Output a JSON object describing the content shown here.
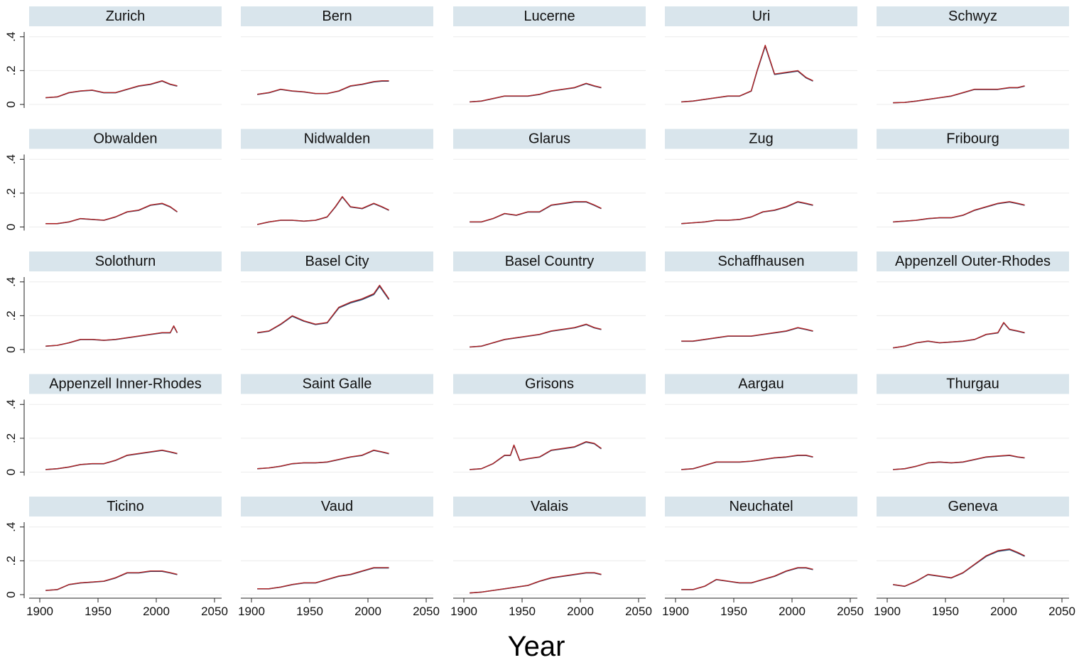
{
  "chart_data": {
    "type": "line",
    "layout": "small-multiples 5x5",
    "xlabel": "Year",
    "ylabel": "",
    "xlim": [
      1900,
      2055
    ],
    "ylim": [
      0,
      0.42
    ],
    "x_ticks": [
      1900,
      1950,
      2000,
      2050
    ],
    "x_tick_labels": [
      "1900",
      "1950",
      "2000",
      "2050"
    ],
    "y_ticks": [
      0,
      0.2,
      0.4
    ],
    "y_tick_labels": [
      "0",
      ".2",
      ".4"
    ],
    "grid": true,
    "legend": "none",
    "series_colors": [
      "#1f4e79",
      "#b22222"
    ],
    "series": [
      {
        "name": "",
        "color": "#1f4e79"
      },
      {
        "name": "",
        "color": "#b22222"
      }
    ],
    "panels": [
      {
        "title": "Zurich",
        "x": [
          1905,
          1915,
          1925,
          1935,
          1945,
          1955,
          1965,
          1975,
          1985,
          1995,
          2005,
          2012,
          2018
        ],
        "values": [
          0.04,
          0.045,
          0.07,
          0.08,
          0.085,
          0.07,
          0.07,
          0.09,
          0.11,
          0.12,
          0.14,
          0.12,
          0.11
        ]
      },
      {
        "title": "Bern",
        "x": [
          1905,
          1915,
          1925,
          1935,
          1945,
          1955,
          1965,
          1975,
          1985,
          1995,
          2005,
          2012,
          2018
        ],
        "values": [
          0.06,
          0.07,
          0.09,
          0.08,
          0.075,
          0.065,
          0.065,
          0.08,
          0.11,
          0.12,
          0.135,
          0.14,
          0.14
        ]
      },
      {
        "title": "Lucerne",
        "x": [
          1905,
          1915,
          1925,
          1935,
          1945,
          1955,
          1965,
          1975,
          1985,
          1995,
          2005,
          2012,
          2018
        ],
        "values": [
          0.015,
          0.02,
          0.035,
          0.05,
          0.05,
          0.05,
          0.06,
          0.08,
          0.09,
          0.1,
          0.125,
          0.11,
          0.1
        ]
      },
      {
        "title": "Uri",
        "x": [
          1905,
          1915,
          1925,
          1935,
          1945,
          1955,
          1965,
          1970,
          1977,
          1985,
          1995,
          2005,
          2012,
          2018
        ],
        "values": [
          0.015,
          0.02,
          0.03,
          0.04,
          0.05,
          0.05,
          0.08,
          0.2,
          0.35,
          0.18,
          0.19,
          0.2,
          0.16,
          0.14
        ]
      },
      {
        "title": "Schwyz",
        "x": [
          1905,
          1915,
          1925,
          1935,
          1945,
          1955,
          1965,
          1975,
          1985,
          1995,
          2005,
          2012,
          2018
        ],
        "values": [
          0.01,
          0.012,
          0.02,
          0.03,
          0.04,
          0.05,
          0.07,
          0.09,
          0.09,
          0.09,
          0.1,
          0.1,
          0.11
        ]
      },
      {
        "title": "Obwalden",
        "x": [
          1905,
          1915,
          1925,
          1935,
          1945,
          1955,
          1965,
          1975,
          1985,
          1995,
          2005,
          2012,
          2018
        ],
        "values": [
          0.02,
          0.02,
          0.03,
          0.05,
          0.045,
          0.04,
          0.06,
          0.09,
          0.1,
          0.13,
          0.14,
          0.12,
          0.09
        ]
      },
      {
        "title": "Nidwalden",
        "x": [
          1905,
          1915,
          1925,
          1935,
          1945,
          1955,
          1965,
          1972,
          1978,
          1985,
          1995,
          2005,
          2012,
          2018
        ],
        "values": [
          0.015,
          0.03,
          0.04,
          0.04,
          0.035,
          0.04,
          0.06,
          0.12,
          0.18,
          0.12,
          0.11,
          0.14,
          0.12,
          0.1
        ]
      },
      {
        "title": "Glarus",
        "x": [
          1905,
          1915,
          1925,
          1935,
          1945,
          1955,
          1965,
          1975,
          1985,
          1995,
          2005,
          2012,
          2018
        ],
        "values": [
          0.03,
          0.03,
          0.05,
          0.08,
          0.07,
          0.09,
          0.09,
          0.13,
          0.14,
          0.15,
          0.15,
          0.13,
          0.11
        ]
      },
      {
        "title": "Zug",
        "x": [
          1905,
          1915,
          1925,
          1935,
          1945,
          1955,
          1965,
          1975,
          1985,
          1995,
          2005,
          2012,
          2018
        ],
        "values": [
          0.02,
          0.025,
          0.03,
          0.04,
          0.04,
          0.045,
          0.06,
          0.09,
          0.1,
          0.12,
          0.15,
          0.14,
          0.13
        ]
      },
      {
        "title": "Fribourg",
        "x": [
          1905,
          1915,
          1925,
          1935,
          1945,
          1955,
          1965,
          1975,
          1985,
          1995,
          2005,
          2012,
          2018
        ],
        "values": [
          0.03,
          0.035,
          0.04,
          0.05,
          0.055,
          0.055,
          0.07,
          0.1,
          0.12,
          0.14,
          0.15,
          0.14,
          0.13
        ]
      },
      {
        "title": "Solothurn",
        "x": [
          1905,
          1915,
          1925,
          1935,
          1945,
          1955,
          1965,
          1975,
          1985,
          1995,
          2005,
          2012,
          2015,
          2018
        ],
        "values": [
          0.02,
          0.025,
          0.04,
          0.06,
          0.06,
          0.055,
          0.06,
          0.07,
          0.08,
          0.09,
          0.1,
          0.1,
          0.14,
          0.1
        ]
      },
      {
        "title": "Basel City",
        "x": [
          1905,
          1915,
          1925,
          1935,
          1945,
          1955,
          1965,
          1975,
          1985,
          1995,
          2005,
          2010,
          2018
        ],
        "values": [
          0.1,
          0.11,
          0.15,
          0.2,
          0.17,
          0.15,
          0.16,
          0.25,
          0.28,
          0.3,
          0.33,
          0.38,
          0.3
        ]
      },
      {
        "title": "Basel Country",
        "x": [
          1905,
          1915,
          1925,
          1935,
          1945,
          1955,
          1965,
          1975,
          1985,
          1995,
          2005,
          2012,
          2018
        ],
        "values": [
          0.015,
          0.02,
          0.04,
          0.06,
          0.07,
          0.08,
          0.09,
          0.11,
          0.12,
          0.13,
          0.15,
          0.13,
          0.12
        ]
      },
      {
        "title": "Schaffhausen",
        "x": [
          1905,
          1915,
          1925,
          1935,
          1945,
          1955,
          1965,
          1975,
          1985,
          1995,
          2005,
          2012,
          2018
        ],
        "values": [
          0.05,
          0.05,
          0.06,
          0.07,
          0.08,
          0.08,
          0.08,
          0.09,
          0.1,
          0.11,
          0.13,
          0.12,
          0.11
        ]
      },
      {
        "title": "Appenzell Outer-Rhodes",
        "x": [
          1905,
          1915,
          1925,
          1935,
          1945,
          1955,
          1965,
          1975,
          1985,
          1995,
          2000,
          2005,
          2012,
          2018
        ],
        "values": [
          0.01,
          0.02,
          0.04,
          0.05,
          0.04,
          0.045,
          0.05,
          0.06,
          0.09,
          0.1,
          0.16,
          0.12,
          0.11,
          0.1
        ]
      },
      {
        "title": "Appenzell Inner-Rhodes",
        "x": [
          1905,
          1915,
          1925,
          1935,
          1945,
          1955,
          1965,
          1975,
          1985,
          1995,
          2005,
          2012,
          2018
        ],
        "values": [
          0.015,
          0.02,
          0.03,
          0.045,
          0.05,
          0.05,
          0.07,
          0.1,
          0.11,
          0.12,
          0.13,
          0.12,
          0.11
        ]
      },
      {
        "title": "Saint Galle",
        "x": [
          1905,
          1915,
          1925,
          1935,
          1945,
          1955,
          1965,
          1975,
          1985,
          1995,
          2005,
          2012,
          2018
        ],
        "values": [
          0.02,
          0.025,
          0.035,
          0.05,
          0.055,
          0.055,
          0.06,
          0.075,
          0.09,
          0.1,
          0.13,
          0.12,
          0.11
        ]
      },
      {
        "title": "Grisons",
        "x": [
          1905,
          1915,
          1925,
          1935,
          1940,
          1943,
          1948,
          1955,
          1965,
          1975,
          1985,
          1995,
          2005,
          2012,
          2018
        ],
        "values": [
          0.015,
          0.02,
          0.05,
          0.1,
          0.1,
          0.16,
          0.07,
          0.08,
          0.09,
          0.13,
          0.14,
          0.15,
          0.18,
          0.17,
          0.14
        ]
      },
      {
        "title": "Aargau",
        "x": [
          1905,
          1915,
          1925,
          1935,
          1945,
          1955,
          1965,
          1975,
          1985,
          1995,
          2005,
          2012,
          2018
        ],
        "values": [
          0.015,
          0.02,
          0.04,
          0.06,
          0.06,
          0.06,
          0.065,
          0.075,
          0.085,
          0.09,
          0.1,
          0.1,
          0.09
        ]
      },
      {
        "title": "Thurgau",
        "x": [
          1905,
          1915,
          1925,
          1935,
          1945,
          1955,
          1965,
          1975,
          1985,
          1995,
          2005,
          2012,
          2018
        ],
        "values": [
          0.015,
          0.02,
          0.035,
          0.055,
          0.06,
          0.055,
          0.06,
          0.075,
          0.09,
          0.095,
          0.1,
          0.09,
          0.085
        ]
      },
      {
        "title": "Ticino",
        "x": [
          1905,
          1915,
          1925,
          1935,
          1945,
          1955,
          1965,
          1975,
          1985,
          1995,
          2005,
          2012,
          2018
        ],
        "values": [
          0.025,
          0.03,
          0.06,
          0.07,
          0.075,
          0.08,
          0.1,
          0.13,
          0.13,
          0.14,
          0.14,
          0.13,
          0.12
        ]
      },
      {
        "title": "Vaud",
        "x": [
          1905,
          1915,
          1925,
          1935,
          1945,
          1955,
          1965,
          1975,
          1985,
          1995,
          2005,
          2012,
          2018
        ],
        "values": [
          0.035,
          0.035,
          0.045,
          0.06,
          0.07,
          0.07,
          0.09,
          0.11,
          0.12,
          0.14,
          0.16,
          0.16,
          0.16
        ]
      },
      {
        "title": "Valais",
        "x": [
          1905,
          1915,
          1925,
          1935,
          1945,
          1955,
          1965,
          1975,
          1985,
          1995,
          2005,
          2012,
          2018
        ],
        "values": [
          0.01,
          0.015,
          0.025,
          0.035,
          0.045,
          0.055,
          0.08,
          0.1,
          0.11,
          0.12,
          0.13,
          0.13,
          0.12
        ]
      },
      {
        "title": "Neuchatel",
        "x": [
          1905,
          1915,
          1925,
          1935,
          1945,
          1955,
          1965,
          1975,
          1985,
          1995,
          2005,
          2012,
          2018
        ],
        "values": [
          0.03,
          0.03,
          0.05,
          0.09,
          0.08,
          0.07,
          0.07,
          0.09,
          0.11,
          0.14,
          0.16,
          0.16,
          0.15
        ]
      },
      {
        "title": "Geneva",
        "x": [
          1905,
          1915,
          1925,
          1935,
          1945,
          1955,
          1965,
          1975,
          1985,
          1995,
          2005,
          2012,
          2018
        ],
        "values": [
          0.06,
          0.05,
          0.08,
          0.12,
          0.11,
          0.1,
          0.13,
          0.18,
          0.23,
          0.26,
          0.27,
          0.25,
          0.23
        ]
      }
    ]
  }
}
